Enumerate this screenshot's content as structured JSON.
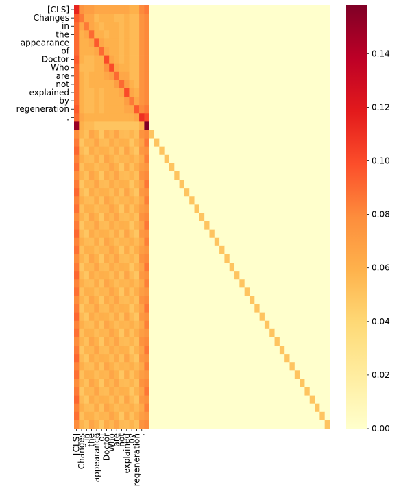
{
  "chart_data": {
    "type": "heatmap",
    "colormap": "YlOrRd",
    "rows": 51,
    "cols": 51,
    "token_labels": [
      "[CLS]",
      "Changes",
      "in",
      "the",
      "appearance",
      "of",
      "Doctor",
      "Who",
      "are",
      "not",
      "explained",
      "by",
      "regeneration",
      "."
    ],
    "y_tick_labels": [
      "[CLS]",
      "Changes",
      "in",
      "the",
      "appearance",
      "of",
      "Doctor",
      "Who",
      "are",
      "not",
      "explained",
      "by",
      "regeneration",
      "."
    ],
    "x_tick_labels": [
      "[CLS]",
      "Changes",
      "in",
      "the",
      "appearance",
      "of",
      "Doctor",
      "Who",
      "are",
      "not",
      "explained",
      "by",
      "regeneration",
      "."
    ],
    "padding_diagonal_value": 0.05,
    "empty_value": 0.0,
    "colorbar": {
      "min": 0.0,
      "max": 0.158,
      "ticks": [
        0.0,
        0.02,
        0.04,
        0.06,
        0.08,
        0.1,
        0.12,
        0.14
      ],
      "tick_labels": [
        "0.00",
        "0.02",
        "0.04",
        "0.06",
        "0.08",
        "0.10",
        "0.12",
        "0.14"
      ]
    },
    "token_row_values": [
      [
        0.115,
        0.075,
        0.07,
        0.07,
        0.065,
        0.065,
        0.065,
        0.065,
        0.065,
        0.065,
        0.065,
        0.06,
        0.06,
        0.08,
        0.085
      ],
      [
        0.095,
        0.085,
        0.065,
        0.065,
        0.055,
        0.06,
        0.06,
        0.06,
        0.055,
        0.055,
        0.06,
        0.055,
        0.055,
        0.075,
        0.08
      ],
      [
        0.09,
        0.065,
        0.085,
        0.065,
        0.06,
        0.055,
        0.06,
        0.06,
        0.06,
        0.055,
        0.06,
        0.055,
        0.055,
        0.075,
        0.08
      ],
      [
        0.09,
        0.06,
        0.065,
        0.09,
        0.06,
        0.06,
        0.055,
        0.06,
        0.06,
        0.055,
        0.06,
        0.055,
        0.055,
        0.075,
        0.08
      ],
      [
        0.09,
        0.06,
        0.06,
        0.065,
        0.095,
        0.065,
        0.06,
        0.06,
        0.06,
        0.055,
        0.06,
        0.055,
        0.055,
        0.075,
        0.08
      ],
      [
        0.09,
        0.06,
        0.06,
        0.06,
        0.065,
        0.09,
        0.065,
        0.06,
        0.06,
        0.055,
        0.06,
        0.055,
        0.055,
        0.075,
        0.08
      ],
      [
        0.095,
        0.06,
        0.055,
        0.055,
        0.06,
        0.06,
        0.1,
        0.065,
        0.06,
        0.055,
        0.06,
        0.055,
        0.055,
        0.075,
        0.08
      ],
      [
        0.09,
        0.055,
        0.055,
        0.055,
        0.06,
        0.06,
        0.075,
        0.1,
        0.065,
        0.06,
        0.06,
        0.055,
        0.055,
        0.075,
        0.08
      ],
      [
        0.09,
        0.06,
        0.055,
        0.06,
        0.06,
        0.06,
        0.065,
        0.07,
        0.09,
        0.065,
        0.065,
        0.055,
        0.055,
        0.075,
        0.08
      ],
      [
        0.09,
        0.06,
        0.055,
        0.06,
        0.06,
        0.06,
        0.06,
        0.06,
        0.07,
        0.09,
        0.07,
        0.06,
        0.055,
        0.075,
        0.08
      ],
      [
        0.09,
        0.06,
        0.055,
        0.055,
        0.06,
        0.055,
        0.06,
        0.06,
        0.06,
        0.065,
        0.1,
        0.065,
        0.06,
        0.075,
        0.08
      ],
      [
        0.09,
        0.06,
        0.055,
        0.055,
        0.06,
        0.055,
        0.06,
        0.06,
        0.06,
        0.06,
        0.07,
        0.085,
        0.065,
        0.075,
        0.08
      ],
      [
        0.095,
        0.06,
        0.055,
        0.055,
        0.06,
        0.055,
        0.06,
        0.06,
        0.06,
        0.06,
        0.065,
        0.065,
        0.095,
        0.08,
        0.085
      ],
      [
        0.09,
        0.065,
        0.06,
        0.06,
        0.06,
        0.06,
        0.06,
        0.06,
        0.06,
        0.06,
        0.06,
        0.06,
        0.065,
        0.11,
        0.1
      ],
      [
        0.15,
        0.06,
        0.055,
        0.055,
        0.05,
        0.05,
        0.05,
        0.05,
        0.05,
        0.05,
        0.05,
        0.05,
        0.05,
        0.06,
        0.158
      ]
    ],
    "padding_row_values": [
      0.085,
      0.055,
      0.055,
      0.06,
      0.06,
      0.055,
      0.06,
      0.06,
      0.06,
      0.055,
      0.06,
      0.055,
      0.055,
      0.07,
      0.08
    ]
  }
}
